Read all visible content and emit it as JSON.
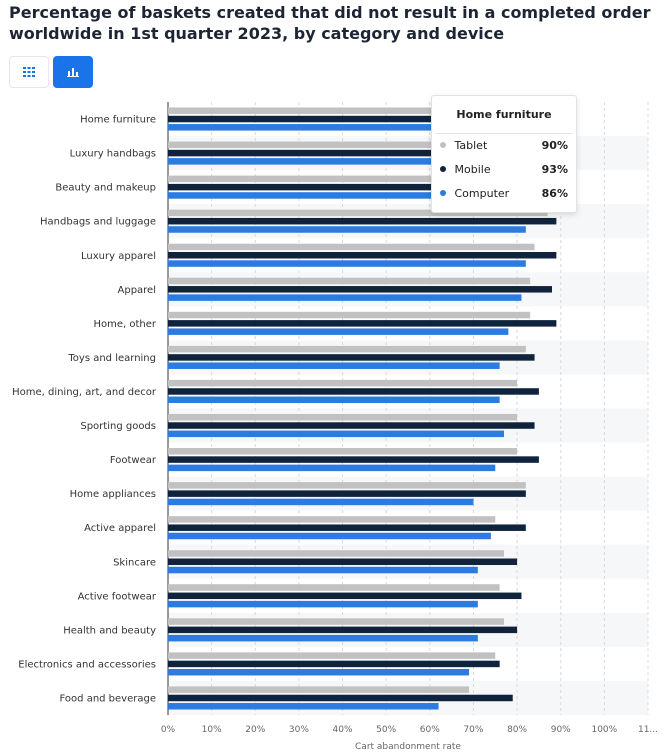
{
  "page_title": "Percentage of baskets created that did not result in a completed order worldwide in 1st quarter 2023, by category and device",
  "view_toggle": [
    {
      "name": "table-view",
      "icon": "grid-icon",
      "active": false
    },
    {
      "name": "chart-view",
      "icon": "bar-chart-icon",
      "active": true
    }
  ],
  "colors": {
    "tablet": "#c1c1c1",
    "mobile": "#0f243c",
    "computer": "#2b7be0",
    "accent": "#1a73e8"
  },
  "chart_data": {
    "type": "bar",
    "orientation": "horizontal",
    "xlabel": "Cart abandonment rate",
    "ylabel": "",
    "xlim": [
      0,
      110
    ],
    "x_ticks": [
      "0%",
      "10%",
      "20%",
      "30%",
      "40%",
      "50%",
      "60%",
      "70%",
      "80%",
      "90%",
      "100%",
      "11..."
    ],
    "grid": true,
    "categories": [
      "Home furniture",
      "Luxury handbags",
      "Beauty and makeup",
      "Handbags and luggage",
      "Luxury apparel",
      "Apparel",
      "Home, other",
      "Toys and learning",
      "Home, dining, art, and decor",
      "Sporting goods",
      "Footwear",
      "Home appliances",
      "Active apparel",
      "Skincare",
      "Active footwear",
      "Health and beauty",
      "Electronics and accessories",
      "Food and beverage"
    ],
    "series": [
      {
        "name": "Tablet",
        "values": [
          90,
          89,
          87,
          87,
          84,
          83,
          83,
          82,
          80,
          80,
          80,
          82,
          75,
          77,
          76,
          77,
          75,
          69
        ]
      },
      {
        "name": "Mobile",
        "values": [
          93,
          91,
          90,
          89,
          89,
          88,
          89,
          84,
          85,
          84,
          85,
          82,
          82,
          80,
          81,
          80,
          76,
          79
        ]
      },
      {
        "name": "Computer",
        "values": [
          86,
          85,
          84,
          82,
          82,
          81,
          78,
          76,
          76,
          77,
          75,
          70,
          74,
          71,
          71,
          71,
          69,
          62
        ]
      }
    ]
  },
  "tooltip": {
    "title": "Home furniture",
    "rows": [
      {
        "label": "Tablet",
        "value": "90%"
      },
      {
        "label": "Mobile",
        "value": "93%"
      },
      {
        "label": "Computer",
        "value": "86%"
      }
    ]
  }
}
